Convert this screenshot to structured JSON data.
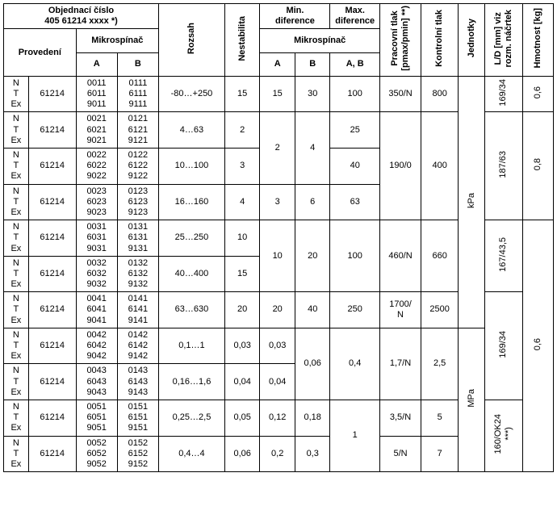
{
  "header": {
    "objednaci": "Objednací číslo\n405 61214 xxxx *)",
    "mikrospinac": "Mikrospínač",
    "provedeni": "Provedení",
    "A": "A",
    "B": "B",
    "rozsah": "Rozsah",
    "nestabilita": "Nestabilita",
    "min_dif": "Min.\ndiference",
    "max_dif": "Max.\ndiference",
    "mikrospinac2": "Mikrospínač",
    "AB": "A, B",
    "prac_tlak": "Pracovní tlak\n[pmax/pmin] **)",
    "kontrolni_tlak": "Kontrolní tlak",
    "jednotky": "Jednotky",
    "ld": "L/D [mm] viz\nrozm. náčrtek",
    "hmotnost": "Hmotnost [kg]"
  },
  "prov_labels": [
    "N",
    "T",
    "Ex"
  ],
  "prefix": "61214",
  "rows": [
    {
      "msA": [
        "0011",
        "6011",
        "9011"
      ],
      "msB": [
        "0111",
        "6111",
        "9111"
      ],
      "roz": "-80…+250",
      "nest": "15",
      "dA": "15",
      "dB": "30",
      "max": "100",
      "tlak": "350/N",
      "ktlak": "800"
    },
    {
      "msA": [
        "0021",
        "6021",
        "9021"
      ],
      "msB": [
        "0121",
        "6121",
        "9121"
      ],
      "roz": "4…63",
      "nest": "2",
      "max": "25"
    },
    {
      "msA": [
        "0022",
        "6022",
        "9022"
      ],
      "msB": [
        "0122",
        "6122",
        "9122"
      ],
      "roz": "10…100",
      "nest": "3",
      "max": "40"
    },
    {
      "msA": [
        "0023",
        "6023",
        "9023"
      ],
      "msB": [
        "0123",
        "6123",
        "9123"
      ],
      "roz": "16…160",
      "nest": "4",
      "dA": "3",
      "dB": "6",
      "max": "63"
    },
    {
      "msA": [
        "0031",
        "6031",
        "9031"
      ],
      "msB": [
        "0131",
        "6131",
        "9131"
      ],
      "roz": "25…250",
      "nest": "10"
    },
    {
      "msA": [
        "0032",
        "6032",
        "9032"
      ],
      "msB": [
        "0132",
        "6132",
        "9132"
      ],
      "roz": "40…400",
      "nest": "15"
    },
    {
      "msA": [
        "0041",
        "6041",
        "9041"
      ],
      "msB": [
        "0141",
        "6141",
        "9141"
      ],
      "roz": "63…630",
      "nest": "20",
      "dA": "20",
      "dB": "40",
      "max": "250",
      "tlak": "1700/\nN",
      "ktlak": "2500"
    },
    {
      "msA": [
        "0042",
        "6042",
        "9042"
      ],
      "msB": [
        "0142",
        "6142",
        "9142"
      ],
      "roz": "0,1…1",
      "nest": "0,03",
      "dA": "0,03"
    },
    {
      "msA": [
        "0043",
        "6043",
        "9043"
      ],
      "msB": [
        "0143",
        "6143",
        "9143"
      ],
      "roz": "0,16…1,6",
      "nest": "0,04",
      "dA": "0,04"
    },
    {
      "msA": [
        "0051",
        "6051",
        "9051"
      ],
      "msB": [
        "0151",
        "6151",
        "9151"
      ],
      "roz": "0,25…2,5",
      "nest": "0,05",
      "dA": "0,12",
      "dB": "0,18",
      "tlak": "3,5/N",
      "ktlak": "5"
    },
    {
      "msA": [
        "0052",
        "6052",
        "9052"
      ],
      "msB": [
        "0152",
        "6152",
        "9152"
      ],
      "roz": "0,4…4",
      "nest": "0,06",
      "dA": "0,2",
      "dB": "0,3",
      "tlak": "5/N",
      "ktlak": "7"
    }
  ],
  "merged": {
    "dA_r23": "2",
    "dB_r23": "4",
    "tlak_r234": "190/0",
    "ktlak_r234": "400",
    "dA_r56": "10",
    "dB_r56": "20",
    "max_r56": "100",
    "tlak_r56": "460/N",
    "ktlak_r56": "660",
    "dB_r89": "0,06",
    "max_r89": "0,4",
    "tlak_r89": "1,7/N",
    "ktlak_r89": "2,5",
    "max_r1011": "1",
    "unit_kpa": "kPa",
    "unit_mpa": "MPa",
    "ld_r1": "169/34",
    "hm_r1": "0,6",
    "ld_r234": "187/63",
    "hm_r234": "0,8",
    "ld_r56": "167/43,5",
    "ld_r789": "169/34",
    "hm_r5to9": "0,6",
    "ld_r1011": "160/OK24\n***)"
  }
}
